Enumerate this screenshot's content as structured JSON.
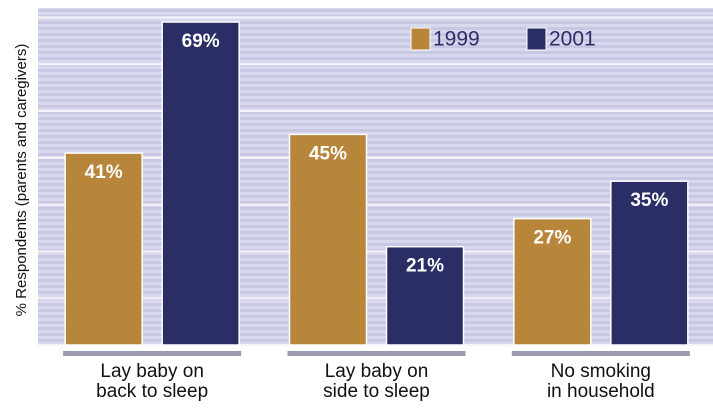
{
  "chart_data": {
    "type": "bar",
    "y_label": "% Respondents (parents and caregivers)",
    "categories": [
      "Lay baby on\nback to sleep",
      "Lay baby on\nside to sleep",
      "No smoking\nin household"
    ],
    "series": [
      {
        "name": "1999",
        "color": "#b8863b",
        "values": [
          41,
          45,
          27
        ],
        "value_labels": [
          "41%",
          "45%",
          "27%"
        ]
      },
      {
        "name": "2001",
        "color": "#2b2d66",
        "values": [
          69,
          21,
          35
        ],
        "value_labels": [
          "69%",
          "21%",
          "35%"
        ]
      }
    ],
    "ylim": [
      0,
      72
    ],
    "yticks": [
      0,
      10,
      20,
      30,
      40,
      50,
      60,
      70
    ],
    "grid": true
  }
}
